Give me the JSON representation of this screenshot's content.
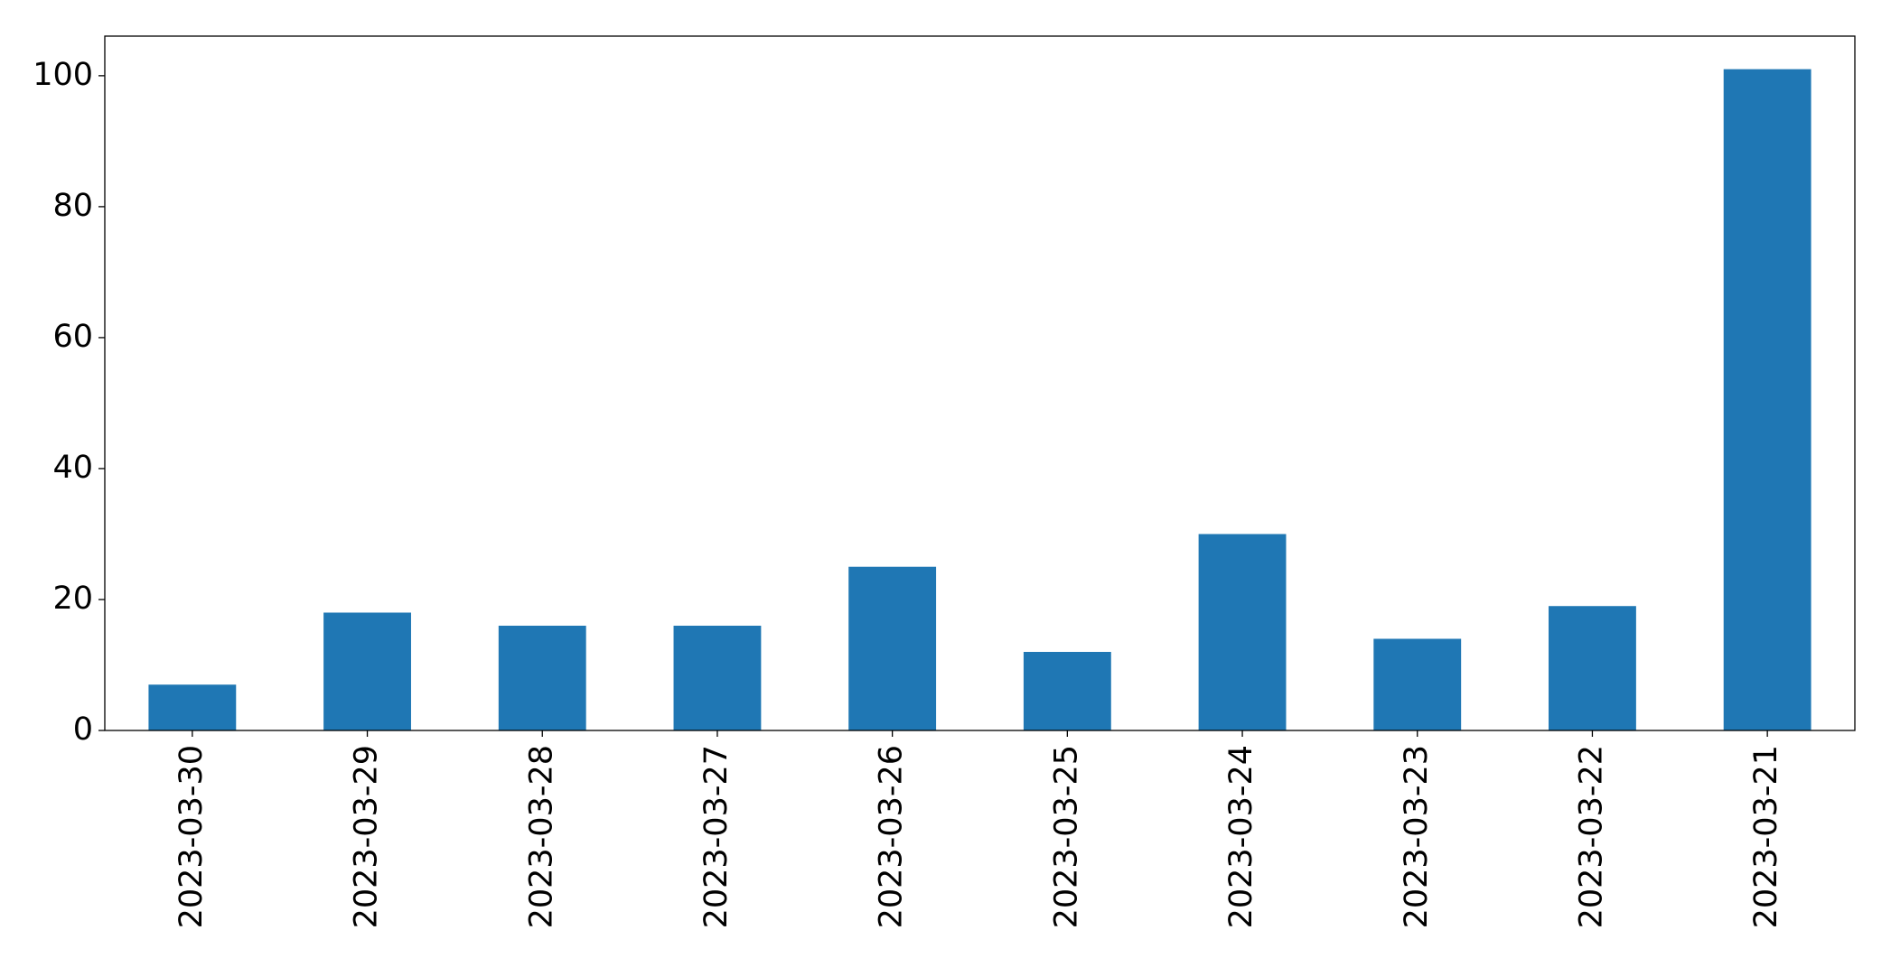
{
  "chart_data": {
    "type": "bar",
    "categories": [
      "2023-03-30",
      "2023-03-29",
      "2023-03-28",
      "2023-03-27",
      "2023-03-26",
      "2023-03-25",
      "2023-03-24",
      "2023-03-23",
      "2023-03-22",
      "2023-03-21"
    ],
    "values": [
      7,
      18,
      16,
      16,
      25,
      12,
      30,
      14,
      19,
      101
    ],
    "color": "#1f77b4",
    "ylim": [
      0,
      106.05
    ],
    "yticks": [
      0,
      20,
      40,
      60,
      80,
      100
    ],
    "grid": false
  }
}
